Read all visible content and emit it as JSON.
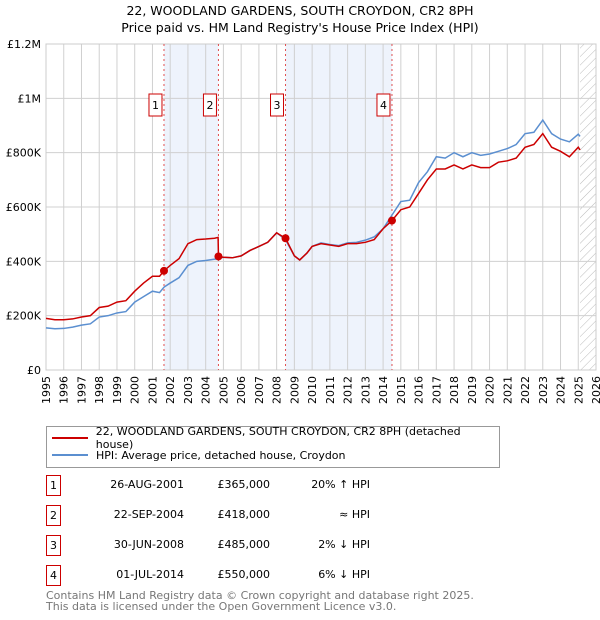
{
  "title": "22, WOODLAND GARDENS, SOUTH CROYDON, CR2 8PH",
  "subtitle": "Price paid vs. HM Land Registry's House Price Index (HPI)",
  "chart_data": {
    "type": "line",
    "xlim": [
      1995,
      2026
    ],
    "ylim": [
      0,
      1200000
    ],
    "x_ticks": [
      "1995",
      "1996",
      "1997",
      "1998",
      "1999",
      "2000",
      "2001",
      "2002",
      "2003",
      "2004",
      "2005",
      "2006",
      "2007",
      "2008",
      "2009",
      "2010",
      "2011",
      "2012",
      "2013",
      "2014",
      "2015",
      "2016",
      "2017",
      "2018",
      "2019",
      "2020",
      "2021",
      "2022",
      "2023",
      "2024",
      "2025",
      "2026"
    ],
    "y_ticks": [
      {
        "v": 0,
        "label": "£0"
      },
      {
        "v": 200000,
        "label": "£200K"
      },
      {
        "v": 400000,
        "label": "£400K"
      },
      {
        "v": 600000,
        "label": "£600K"
      },
      {
        "v": 800000,
        "label": "£800K"
      },
      {
        "v": 1000000,
        "label": "£1M"
      },
      {
        "v": 1200000,
        "label": "£1.2M"
      }
    ],
    "grid": true,
    "shaded_ranges": [
      [
        2001.65,
        2004.72
      ],
      [
        2008.5,
        2014.5
      ]
    ],
    "forecast_hatch_from": 2025.1,
    "series": [
      {
        "name": "22, WOODLAND GARDENS, SOUTH CROYDON, CR2 8PH (detached house)",
        "color": "#cc0000",
        "x": [
          1995,
          1995.5,
          1996,
          1996.5,
          1997,
          1997.5,
          1998,
          1998.5,
          1999,
          1999.5,
          2000,
          2000.5,
          2001,
          2001.4,
          2001.65,
          2002,
          2002.5,
          2003,
          2003.5,
          2004,
          2004.5,
          2004.7,
          2004.72,
          2005,
          2005.5,
          2006,
          2006.5,
          2007,
          2007.5,
          2008,
          2008.5,
          2009,
          2009.3,
          2009.7,
          2010,
          2010.5,
          2011,
          2011.5,
          2012,
          2012.5,
          2013,
          2013.5,
          2014,
          2014.5,
          2015,
          2015.5,
          2016,
          2016.5,
          2017,
          2017.5,
          2018,
          2018.5,
          2019,
          2019.5,
          2020,
          2020.5,
          2021,
          2021.5,
          2022,
          2022.5,
          2023,
          2023.5,
          2024,
          2024.5,
          2025,
          2025.1
        ],
        "y": [
          190000,
          185000,
          185000,
          188000,
          195000,
          200000,
          230000,
          235000,
          250000,
          255000,
          290000,
          320000,
          345000,
          345000,
          365000,
          385000,
          410000,
          465000,
          480000,
          482000,
          485000,
          488000,
          418000,
          415000,
          413000,
          420000,
          440000,
          455000,
          470000,
          505000,
          485000,
          420000,
          405000,
          430000,
          455000,
          465000,
          460000,
          455000,
          465000,
          465000,
          470000,
          480000,
          520000,
          550000,
          590000,
          600000,
          650000,
          700000,
          740000,
          740000,
          755000,
          740000,
          755000,
          745000,
          745000,
          765000,
          770000,
          780000,
          820000,
          830000,
          870000,
          820000,
          805000,
          785000,
          820000,
          810000
        ]
      },
      {
        "name": "HPI: Average price, detached house, Croydon",
        "color": "#5b8fd0",
        "x": [
          1995,
          1995.5,
          1996,
          1996.5,
          1997,
          1997.5,
          1998,
          1998.5,
          1999,
          1999.5,
          2000,
          2000.5,
          2001,
          2001.4,
          2001.65,
          2002,
          2002.5,
          2003,
          2003.5,
          2004,
          2004.7,
          2005,
          2005.5,
          2006,
          2006.5,
          2007,
          2007.5,
          2008,
          2008.5,
          2009,
          2009.3,
          2009.7,
          2010,
          2010.5,
          2011,
          2011.5,
          2012,
          2012.5,
          2013,
          2013.5,
          2014,
          2014.5,
          2015,
          2015.5,
          2016,
          2016.5,
          2017,
          2017.5,
          2018,
          2018.5,
          2019,
          2019.5,
          2020,
          2020.5,
          2021,
          2021.5,
          2022,
          2022.5,
          2023,
          2023.5,
          2024,
          2024.5,
          2025,
          2025.1
        ],
        "y": [
          155000,
          152000,
          153000,
          158000,
          165000,
          170000,
          195000,
          200000,
          210000,
          215000,
          250000,
          270000,
          290000,
          285000,
          305000,
          320000,
          340000,
          385000,
          400000,
          403000,
          410000,
          415000,
          413000,
          420000,
          440000,
          455000,
          470000,
          505000,
          480000,
          420000,
          405000,
          430000,
          455000,
          468000,
          462000,
          458000,
          468000,
          470000,
          478000,
          490000,
          520000,
          570000,
          620000,
          625000,
          690000,
          730000,
          785000,
          780000,
          800000,
          785000,
          800000,
          790000,
          795000,
          805000,
          815000,
          830000,
          870000,
          875000,
          920000,
          870000,
          850000,
          840000,
          868000,
          860000
        ]
      }
    ],
    "sales": [
      {
        "label": "1",
        "x": 2001.65,
        "price": 365000
      },
      {
        "label": "2",
        "x": 2004.72,
        "price": 418000
      },
      {
        "label": "3",
        "x": 2008.5,
        "price": 485000
      },
      {
        "label": "4",
        "x": 2014.5,
        "price": 550000
      }
    ]
  },
  "legend": {
    "red": "22, WOODLAND GARDENS, SOUTH CROYDON, CR2 8PH (detached house)",
    "blue": "HPI: Average price, detached house, Croydon"
  },
  "transactions": [
    {
      "num": "1",
      "date": "26-AUG-2001",
      "price": "£365,000",
      "hpi": "20% ↑ HPI"
    },
    {
      "num": "2",
      "date": "22-SEP-2004",
      "price": "£418,000",
      "hpi": "≈ HPI"
    },
    {
      "num": "3",
      "date": "30-JUN-2008",
      "price": "£485,000",
      "hpi": "2% ↓ HPI"
    },
    {
      "num": "4",
      "date": "01-JUL-2014",
      "price": "£550,000",
      "hpi": "6% ↓ HPI"
    }
  ],
  "footer": {
    "line1": "Contains HM Land Registry data © Crown copyright and database right 2025.",
    "line2": "This data is licensed under the Open Government Licence v3.0."
  }
}
